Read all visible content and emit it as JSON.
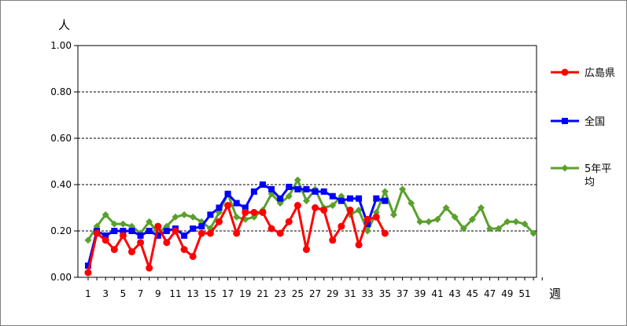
{
  "chart_data": {
    "type": "line",
    "ylabel": "人",
    "xlabel": "週",
    "ylim": [
      0,
      1.0
    ],
    "yticks": [
      "0.00",
      "0.20",
      "0.40",
      "0.60",
      "0.80",
      "1.00"
    ],
    "xlim": [
      1,
      53
    ],
    "xticks": [
      "1",
      "3",
      "5",
      "7",
      "9",
      "11",
      "13",
      "15",
      "17",
      "19",
      "21",
      "23",
      "25",
      "27",
      "29",
      "31",
      "33",
      "35",
      "37",
      "39",
      "41",
      "43",
      "45",
      "47",
      "49",
      "51"
    ],
    "grid": "horizontal-dashed",
    "legend_position": "right",
    "series": [
      {
        "name": "広島県",
        "color": "#ff0000",
        "marker": "circle",
        "values": [
          0.02,
          0.19,
          0.16,
          0.12,
          0.18,
          0.11,
          0.15,
          0.04,
          0.22,
          0.15,
          0.2,
          0.12,
          0.09,
          0.19,
          0.19,
          0.24,
          0.31,
          0.19,
          0.28,
          0.28,
          0.28,
          0.21,
          0.19,
          0.24,
          0.31,
          0.12,
          0.3,
          0.29,
          0.16,
          0.22,
          0.29,
          0.14,
          0.25,
          0.26,
          0.19
        ]
      },
      {
        "name": "全国",
        "color": "#0000ff",
        "marker": "square",
        "values": [
          0.05,
          0.2,
          0.18,
          0.2,
          0.2,
          0.2,
          0.18,
          0.2,
          0.18,
          0.2,
          0.21,
          0.18,
          0.21,
          0.22,
          0.27,
          0.3,
          0.36,
          0.32,
          0.3,
          0.37,
          0.4,
          0.38,
          0.34,
          0.39,
          0.38,
          0.38,
          0.37,
          0.37,
          0.35,
          0.33,
          0.34,
          0.34,
          0.23,
          0.34,
          0.33
        ]
      },
      {
        "name": "5年平均",
        "legend_lines": [
          "5年平",
          "均"
        ],
        "color": "#5aa02c",
        "marker": "diamond",
        "values": [
          0.16,
          0.22,
          0.27,
          0.23,
          0.23,
          0.22,
          0.19,
          0.24,
          0.19,
          0.22,
          0.26,
          0.27,
          0.26,
          0.24,
          0.21,
          0.28,
          0.36,
          0.26,
          0.25,
          0.26,
          0.29,
          0.36,
          0.32,
          0.35,
          0.42,
          0.33,
          0.38,
          0.3,
          0.31,
          0.35,
          0.27,
          0.29,
          0.2,
          0.28,
          0.37,
          0.27,
          0.38,
          0.32,
          0.24,
          0.24,
          0.25,
          0.3,
          0.26,
          0.21,
          0.25,
          0.3,
          0.21,
          0.21,
          0.24,
          0.24,
          0.23,
          0.19
        ]
      }
    ]
  }
}
